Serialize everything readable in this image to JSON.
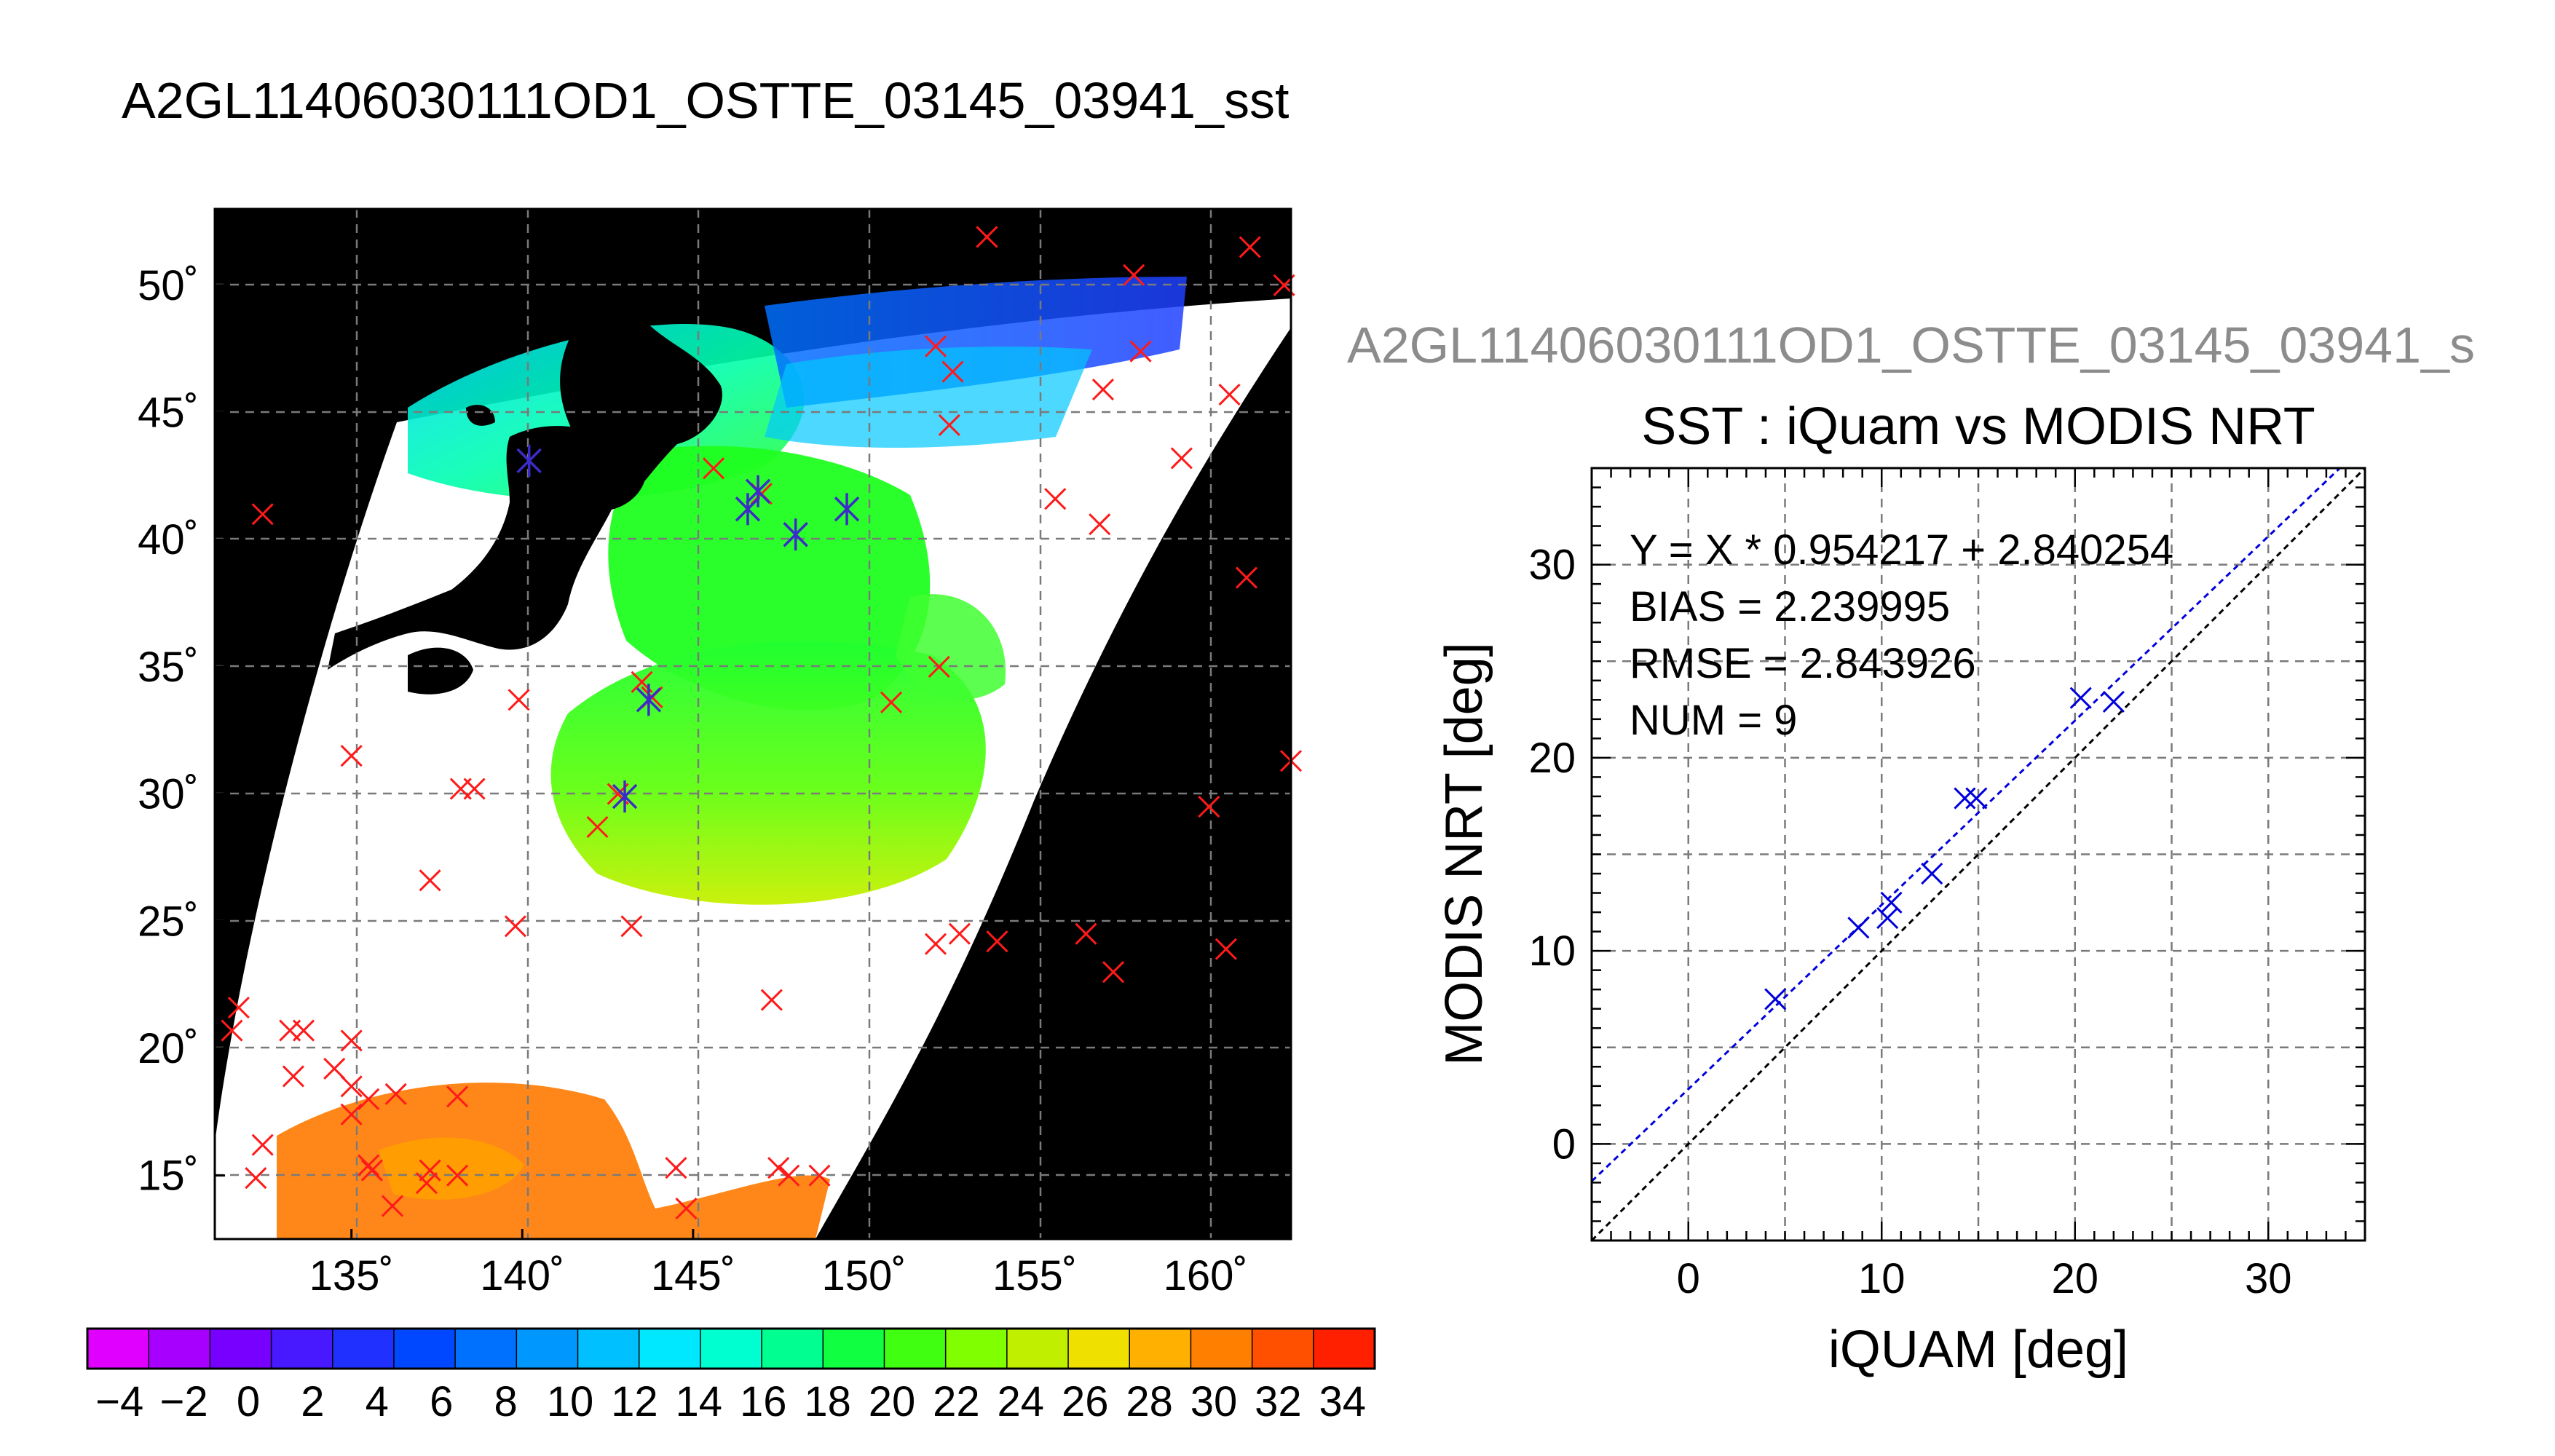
{
  "main_title": "A2GL11406030111OD1_OSTTE_03145_03941_sst",
  "ghost_title": "A2GL11406030111OD1_OSTTE_03145_03941_s",
  "chart_data": [
    {
      "type": "map",
      "lon_range": [
        131,
        162.5
      ],
      "lat_range": [
        12.5,
        53
      ],
      "x_ticks": [
        135,
        140,
        145,
        150,
        155,
        160
      ],
      "y_ticks": [
        15,
        20,
        25,
        30,
        35,
        40,
        45,
        50
      ],
      "x_tick_labels": [
        "135˚",
        "140˚",
        "145˚",
        "150˚",
        "155˚",
        "160˚"
      ],
      "y_tick_labels": [
        "15˚",
        "20˚",
        "25˚",
        "30˚",
        "35˚",
        "40˚",
        "45˚",
        "50˚"
      ],
      "grid": true,
      "colorbar": {
        "min": -5,
        "max": 35,
        "tick_labels": [
          "−4",
          "−2",
          "0",
          "2",
          "4",
          "6",
          "8",
          "10",
          "12",
          "14",
          "16",
          "18",
          "20",
          "22",
          "24",
          "26",
          "28",
          "30",
          "32",
          "34"
        ],
        "colors": [
          "#e000ff",
          "#a800ff",
          "#7800ff",
          "#4818ff",
          "#2030ff",
          "#0048ff",
          "#0070ff",
          "#0098ff",
          "#00c0ff",
          "#00e8ff",
          "#00ffd0",
          "#00ff90",
          "#10ff40",
          "#40ff10",
          "#80ff00",
          "#c0f000",
          "#f0e000",
          "#ffb000",
          "#ff8000",
          "#ff5000",
          "#ff2000"
        ]
      },
      "matched_points_blue": [
        [
          140.2,
          43.1
        ],
        [
          146.6,
          41.2
        ],
        [
          146.9,
          41.9
        ],
        [
          148.0,
          40.2
        ],
        [
          149.5,
          41.2
        ],
        [
          143.7,
          33.7
        ],
        [
          143.0,
          29.9
        ]
      ],
      "buoy_points_red": [
        [
          132.4,
          41.0
        ],
        [
          140.2,
          43.1
        ],
        [
          145.6,
          42.8
        ],
        [
          146.6,
          41.2
        ],
        [
          147.0,
          41.8
        ],
        [
          148.0,
          40.2
        ],
        [
          152.1,
          47.6
        ],
        [
          152.6,
          46.6
        ],
        [
          152.5,
          44.5
        ],
        [
          155.6,
          41.6
        ],
        [
          156.9,
          40.6
        ],
        [
          158.1,
          47.4
        ],
        [
          157.0,
          45.9
        ],
        [
          159.3,
          43.2
        ],
        [
          160.7,
          45.7
        ],
        [
          161.2,
          38.5
        ],
        [
          161.3,
          51.5
        ],
        [
          162.3,
          50.0
        ],
        [
          157.9,
          50.4
        ],
        [
          153.6,
          51.9
        ],
        [
          162.5,
          31.3
        ],
        [
          160.1,
          29.5
        ],
        [
          160.6,
          23.9
        ],
        [
          157.3,
          23.0
        ],
        [
          156.5,
          24.5
        ],
        [
          153.9,
          24.2
        ],
        [
          152.8,
          24.5
        ],
        [
          152.1,
          24.1
        ],
        [
          150.8,
          33.6
        ],
        [
          152.2,
          35.0
        ],
        [
          143.5,
          34.4
        ],
        [
          143.8,
          33.8
        ],
        [
          139.9,
          33.7
        ],
        [
          135.0,
          31.5
        ],
        [
          138.2,
          30.2
        ],
        [
          138.6,
          30.2
        ],
        [
          142.8,
          30.0
        ],
        [
          142.2,
          28.7
        ],
        [
          137.3,
          26.6
        ],
        [
          139.8,
          24.8
        ],
        [
          143.2,
          24.8
        ],
        [
          147.3,
          21.9
        ],
        [
          131.7,
          21.6
        ],
        [
          131.5,
          20.7
        ],
        [
          133.2,
          20.7
        ],
        [
          133.6,
          20.7
        ],
        [
          135.0,
          20.3
        ],
        [
          133.3,
          18.9
        ],
        [
          134.5,
          19.2
        ],
        [
          135.0,
          18.5
        ],
        [
          135.5,
          18.0
        ],
        [
          136.3,
          18.2
        ],
        [
          135.0,
          17.4
        ],
        [
          138.1,
          18.1
        ],
        [
          135.5,
          15.4
        ],
        [
          135.6,
          15.2
        ],
        [
          137.3,
          15.2
        ],
        [
          137.2,
          14.7
        ],
        [
          138.1,
          15.0
        ],
        [
          132.2,
          14.9
        ],
        [
          132.4,
          16.2
        ],
        [
          136.2,
          13.8
        ],
        [
          144.5,
          15.3
        ],
        [
          144.8,
          13.7
        ],
        [
          147.5,
          15.3
        ],
        [
          147.8,
          15.0
        ],
        [
          148.7,
          15.0
        ]
      ]
    },
    {
      "type": "scatter",
      "title": "SST : iQuam vs MODIS NRT",
      "xlabel": "iQUAM [deg]",
      "ylabel": "MODIS NRT [deg]",
      "xlim": [
        -5,
        35
      ],
      "ylim": [
        -5,
        35
      ],
      "x_ticks": [
        0,
        10,
        20,
        30
      ],
      "y_ticks": [
        0,
        10,
        20,
        30
      ],
      "x_tick_labels": [
        "0",
        "10",
        "20",
        "30"
      ],
      "y_tick_labels": [
        "0",
        "10",
        "20",
        "30"
      ],
      "grid": true,
      "points": [
        [
          4.5,
          7.5
        ],
        [
          8.8,
          11.2
        ],
        [
          10.3,
          11.7
        ],
        [
          10.5,
          12.5
        ],
        [
          12.6,
          14.0
        ],
        [
          14.3,
          17.9
        ],
        [
          14.9,
          17.9
        ],
        [
          20.3,
          23.1
        ],
        [
          22.0,
          22.9
        ]
      ],
      "fit_line": {
        "slope": 0.954217,
        "intercept": 2.840254,
        "color": "#0000dd"
      },
      "identity_line": {
        "color": "#000000"
      },
      "point_color": "#0000dd",
      "annotations": [
        "Y = X * 0.954217 + 2.840254",
        "BIAS = 2.239995",
        "RMSE = 2.843926",
        "NUM = 9"
      ]
    }
  ]
}
